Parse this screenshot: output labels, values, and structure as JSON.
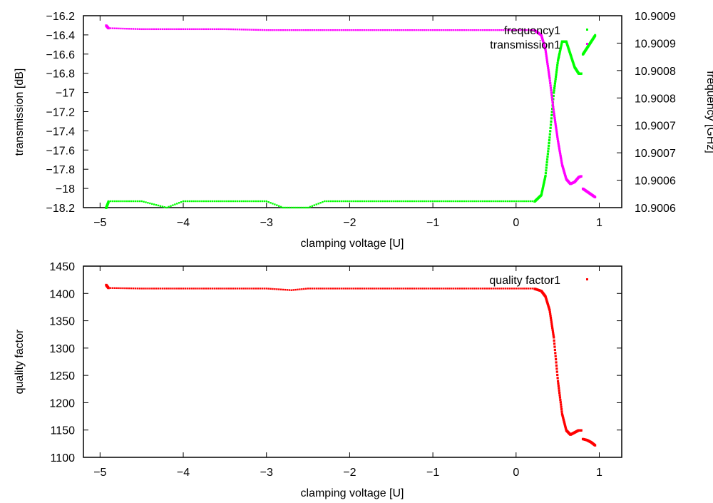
{
  "chart_data": [
    {
      "type": "scatter",
      "title": "",
      "xlabel": "clamping voltage [U]",
      "ylabel": "transmission [dB]",
      "y2label": "frequency [GHz]",
      "xlim": [
        -5.2,
        1.27
      ],
      "ylim": [
        -18.2,
        -16.2
      ],
      "y2lim": [
        10.9006,
        10.9009
      ],
      "xticks": [
        "−5",
        "−4",
        "−3",
        "−2",
        "−1",
        "0",
        "1"
      ],
      "yticks": [
        "−16.2",
        "−16.4",
        "−16.6",
        "−16.8",
        "−17",
        "−17.2",
        "−17.4",
        "−17.6",
        "−17.8",
        "−18",
        "−18.2"
      ],
      "y2ticks": [
        "10.9009",
        "10.9009",
        "10.9008",
        "10.9008",
        "10.9007",
        "10.9007",
        "10.9006",
        "10.9006"
      ],
      "grid": false,
      "legend_position": "top-right",
      "series": [
        {
          "name": "frequency1",
          "axis": "right",
          "color": "#00ff00",
          "points": [
            [
              -4.93,
              10.9006
            ],
            [
              -4.9,
              10.90061
            ],
            [
              -4.5,
              10.90061
            ],
            [
              -4.2,
              10.9006
            ],
            [
              -4.0,
              10.90061
            ],
            [
              -3.5,
              10.90061
            ],
            [
              -3.0,
              10.90061
            ],
            [
              -2.8,
              10.9006
            ],
            [
              -2.5,
              10.9006
            ],
            [
              -2.3,
              10.90061
            ],
            [
              -2.0,
              10.90061
            ],
            [
              -1.5,
              10.90061
            ],
            [
              -1.0,
              10.90061
            ],
            [
              -0.5,
              10.90061
            ],
            [
              0.0,
              10.90061
            ],
            [
              0.22,
              10.90061
            ],
            [
              0.3,
              10.90062
            ],
            [
              0.35,
              10.90065
            ],
            [
              0.4,
              10.90071
            ],
            [
              0.45,
              10.90078
            ],
            [
              0.5,
              10.90083
            ],
            [
              0.55,
              10.90086
            ],
            [
              0.6,
              10.90086
            ],
            [
              0.65,
              10.90084
            ],
            [
              0.7,
              10.90082
            ],
            [
              0.75,
              10.90081
            ],
            [
              0.78,
              10.90081
            ],
            [
              0.8,
              10.90084
            ],
            [
              0.85,
              10.90085
            ],
            [
              0.9,
              10.90086
            ],
            [
              0.95,
              10.90087
            ]
          ]
        },
        {
          "name": "transmission1",
          "axis": "left",
          "color": "#ff00ff",
          "points": [
            [
              -4.93,
              -16.3
            ],
            [
              -4.9,
              -16.33
            ],
            [
              -4.5,
              -16.34
            ],
            [
              -4.0,
              -16.34
            ],
            [
              -3.5,
              -16.34
            ],
            [
              -3.0,
              -16.35
            ],
            [
              -2.5,
              -16.35
            ],
            [
              -2.0,
              -16.35
            ],
            [
              -1.5,
              -16.35
            ],
            [
              -1.0,
              -16.35
            ],
            [
              -0.5,
              -16.35
            ],
            [
              0.0,
              -16.35
            ],
            [
              0.22,
              -16.35
            ],
            [
              0.3,
              -16.4
            ],
            [
              0.35,
              -16.55
            ],
            [
              0.4,
              -16.85
            ],
            [
              0.45,
              -17.2
            ],
            [
              0.5,
              -17.5
            ],
            [
              0.55,
              -17.75
            ],
            [
              0.6,
              -17.9
            ],
            [
              0.65,
              -17.95
            ],
            [
              0.7,
              -17.93
            ],
            [
              0.75,
              -17.88
            ],
            [
              0.78,
              -17.87
            ],
            [
              0.8,
              -18.0
            ],
            [
              0.85,
              -18.03
            ],
            [
              0.9,
              -18.06
            ],
            [
              0.95,
              -18.09
            ]
          ]
        }
      ]
    },
    {
      "type": "scatter",
      "title": "",
      "xlabel": "clamping voltage [U]",
      "ylabel": "quality factor",
      "xlim": [
        -5.2,
        1.27
      ],
      "ylim": [
        1100,
        1450
      ],
      "xticks": [
        "−5",
        "−4",
        "−3",
        "−2",
        "−1",
        "0",
        "1"
      ],
      "yticks": [
        "1450",
        "1400",
        "1350",
        "1300",
        "1250",
        "1200",
        "1150",
        "1100"
      ],
      "grid": false,
      "legend_position": "top-right",
      "series": [
        {
          "name": "quality factor1",
          "axis": "left",
          "color": "#ff0000",
          "points": [
            [
              -4.93,
              1416
            ],
            [
              -4.9,
              1410
            ],
            [
              -4.5,
              1409
            ],
            [
              -4.0,
              1409
            ],
            [
              -3.5,
              1409
            ],
            [
              -3.0,
              1409
            ],
            [
              -2.7,
              1406
            ],
            [
              -2.5,
              1409
            ],
            [
              -2.0,
              1409
            ],
            [
              -1.5,
              1409
            ],
            [
              -1.0,
              1409
            ],
            [
              -0.5,
              1409
            ],
            [
              0.0,
              1409
            ],
            [
              0.22,
              1409
            ],
            [
              0.3,
              1405
            ],
            [
              0.35,
              1395
            ],
            [
              0.4,
              1370
            ],
            [
              0.45,
              1320
            ],
            [
              0.5,
              1240
            ],
            [
              0.55,
              1180
            ],
            [
              0.6,
              1150
            ],
            [
              0.65,
              1142
            ],
            [
              0.7,
              1146
            ],
            [
              0.75,
              1150
            ],
            [
              0.78,
              1150
            ],
            [
              0.8,
              1134
            ],
            [
              0.85,
              1132
            ],
            [
              0.9,
              1128
            ],
            [
              0.95,
              1122
            ]
          ]
        }
      ]
    }
  ]
}
